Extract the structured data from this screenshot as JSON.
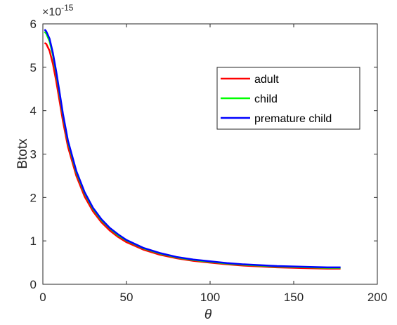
{
  "chart_data": {
    "type": "line",
    "xlabel": "θ",
    "ylabel": "Btotx",
    "y_multiplier": "×10",
    "y_exponent": "-15",
    "xlim": [
      0,
      200
    ],
    "ylim": [
      0,
      6
    ],
    "xticks": [
      0,
      50,
      100,
      150,
      200
    ],
    "yticks": [
      0,
      1,
      2,
      3,
      4,
      5,
      6
    ],
    "grid": false,
    "legend_position": "top-right",
    "x": [
      1,
      2,
      4,
      6,
      8,
      10,
      12,
      15,
      20,
      25,
      30,
      35,
      40,
      45,
      50,
      60,
      70,
      80,
      90,
      100,
      110,
      120,
      130,
      140,
      150,
      160,
      170,
      178
    ],
    "series": [
      {
        "name": "adult",
        "color": "#ff0000",
        "values": [
          5.56,
          5.54,
          5.38,
          5.08,
          4.68,
          4.22,
          3.76,
          3.17,
          2.5,
          2.02,
          1.68,
          1.43,
          1.24,
          1.09,
          0.97,
          0.8,
          0.68,
          0.6,
          0.54,
          0.5,
          0.46,
          0.43,
          0.41,
          0.39,
          0.38,
          0.37,
          0.36,
          0.36
        ]
      },
      {
        "name": "child",
        "color": "#00ff00",
        "values": [
          5.82,
          5.78,
          5.6,
          5.28,
          4.86,
          4.38,
          3.9,
          3.28,
          2.58,
          2.1,
          1.74,
          1.48,
          1.29,
          1.13,
          1.01,
          0.83,
          0.71,
          0.62,
          0.56,
          0.52,
          0.48,
          0.45,
          0.43,
          0.41,
          0.4,
          0.39,
          0.38,
          0.38
        ]
      },
      {
        "name": "premature child",
        "color": "#0000ff",
        "values": [
          5.87,
          5.83,
          5.66,
          5.33,
          4.9,
          4.42,
          3.93,
          3.31,
          2.61,
          2.12,
          1.76,
          1.5,
          1.3,
          1.15,
          1.02,
          0.84,
          0.72,
          0.63,
          0.57,
          0.53,
          0.49,
          0.46,
          0.44,
          0.42,
          0.41,
          0.4,
          0.39,
          0.39
        ]
      }
    ]
  }
}
